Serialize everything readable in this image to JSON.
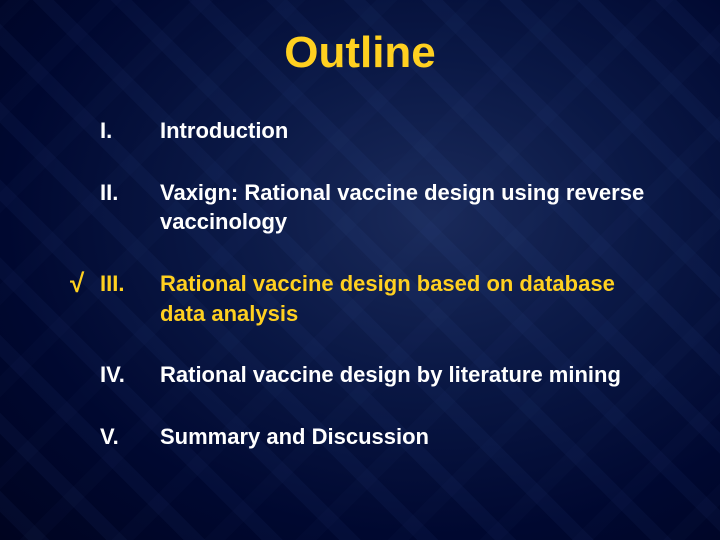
{
  "slide": {
    "title": "Outline",
    "title_color": "#ffd020",
    "title_fontsize": 44,
    "body_fontsize": 22,
    "body_color": "#ffffff",
    "highlight_color": "#ffd020",
    "background_colors": [
      "#1a2a5a",
      "#0a1845",
      "#000830",
      "#000420"
    ],
    "checkmark_symbol": "√",
    "items": [
      {
        "numeral": "I.",
        "text": "Introduction",
        "checked": false,
        "highlighted": false
      },
      {
        "numeral": "II.",
        "text": "Vaxign: Rational vaccine design using reverse vaccinology",
        "checked": false,
        "highlighted": false
      },
      {
        "numeral": "III.",
        "text": "Rational vaccine design based on database data analysis",
        "checked": true,
        "highlighted": true
      },
      {
        "numeral": "IV.",
        "text": "Rational vaccine design by literature mining",
        "checked": false,
        "highlighted": false
      },
      {
        "numeral": "V.",
        "text": "Summary and Discussion",
        "checked": false,
        "highlighted": false
      }
    ]
  }
}
